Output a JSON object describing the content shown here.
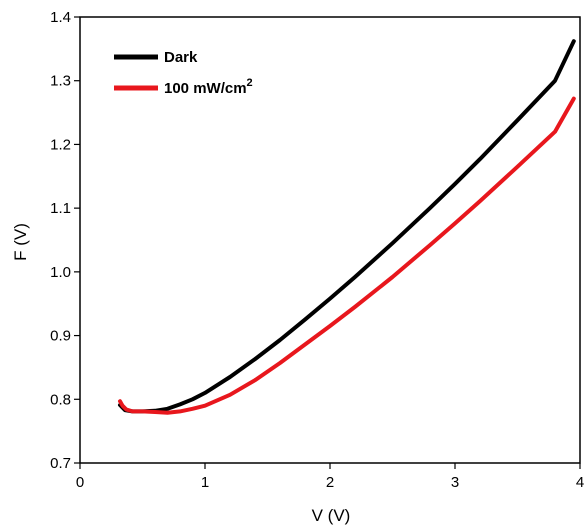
{
  "chart_data": {
    "type": "line",
    "xlabel": "V (V)",
    "ylabel": "F (V)",
    "xlim": [
      0,
      4
    ],
    "ylim": [
      0.7,
      1.4
    ],
    "xticks": [
      0,
      1,
      2,
      3,
      4
    ],
    "xtick_labels": [
      "0",
      "1",
      "2",
      "3",
      "4"
    ],
    "yticks": [
      0.7,
      0.8,
      0.9,
      1.0,
      1.1,
      1.2,
      1.3,
      1.4
    ],
    "ytick_labels": [
      "0.7",
      "0.8",
      "0.9",
      "1.0",
      "1.1",
      "1.2",
      "1.3",
      "1.4"
    ],
    "grid": false,
    "legend_position": "top-left",
    "series": [
      {
        "name": "Dark",
        "color": "#000000",
        "x": [
          0.32,
          0.36,
          0.42,
          0.5,
          0.6,
          0.7,
          0.8,
          0.9,
          1.0,
          1.2,
          1.4,
          1.6,
          1.8,
          2.0,
          2.2,
          2.5,
          2.8,
          3.0,
          3.2,
          3.5,
          3.8,
          3.95
        ],
        "y": [
          0.791,
          0.783,
          0.781,
          0.781,
          0.782,
          0.785,
          0.792,
          0.8,
          0.81,
          0.835,
          0.863,
          0.893,
          0.925,
          0.958,
          0.992,
          1.045,
          1.1,
          1.138,
          1.177,
          1.238,
          1.3,
          1.362
        ]
      },
      {
        "name": "100 mW/cm",
        "name_sup": "2",
        "color": "#e8171d",
        "x": [
          0.32,
          0.34,
          0.37,
          0.42,
          0.5,
          0.6,
          0.7,
          0.8,
          0.9,
          1.0,
          1.2,
          1.4,
          1.6,
          1.8,
          2.0,
          2.2,
          2.5,
          2.8,
          3.0,
          3.2,
          3.5,
          3.8,
          3.95
        ],
        "y": [
          0.797,
          0.79,
          0.784,
          0.781,
          0.781,
          0.78,
          0.779,
          0.781,
          0.785,
          0.79,
          0.807,
          0.83,
          0.857,
          0.886,
          0.915,
          0.945,
          0.992,
          1.042,
          1.076,
          1.111,
          1.165,
          1.22,
          1.272
        ]
      }
    ]
  }
}
